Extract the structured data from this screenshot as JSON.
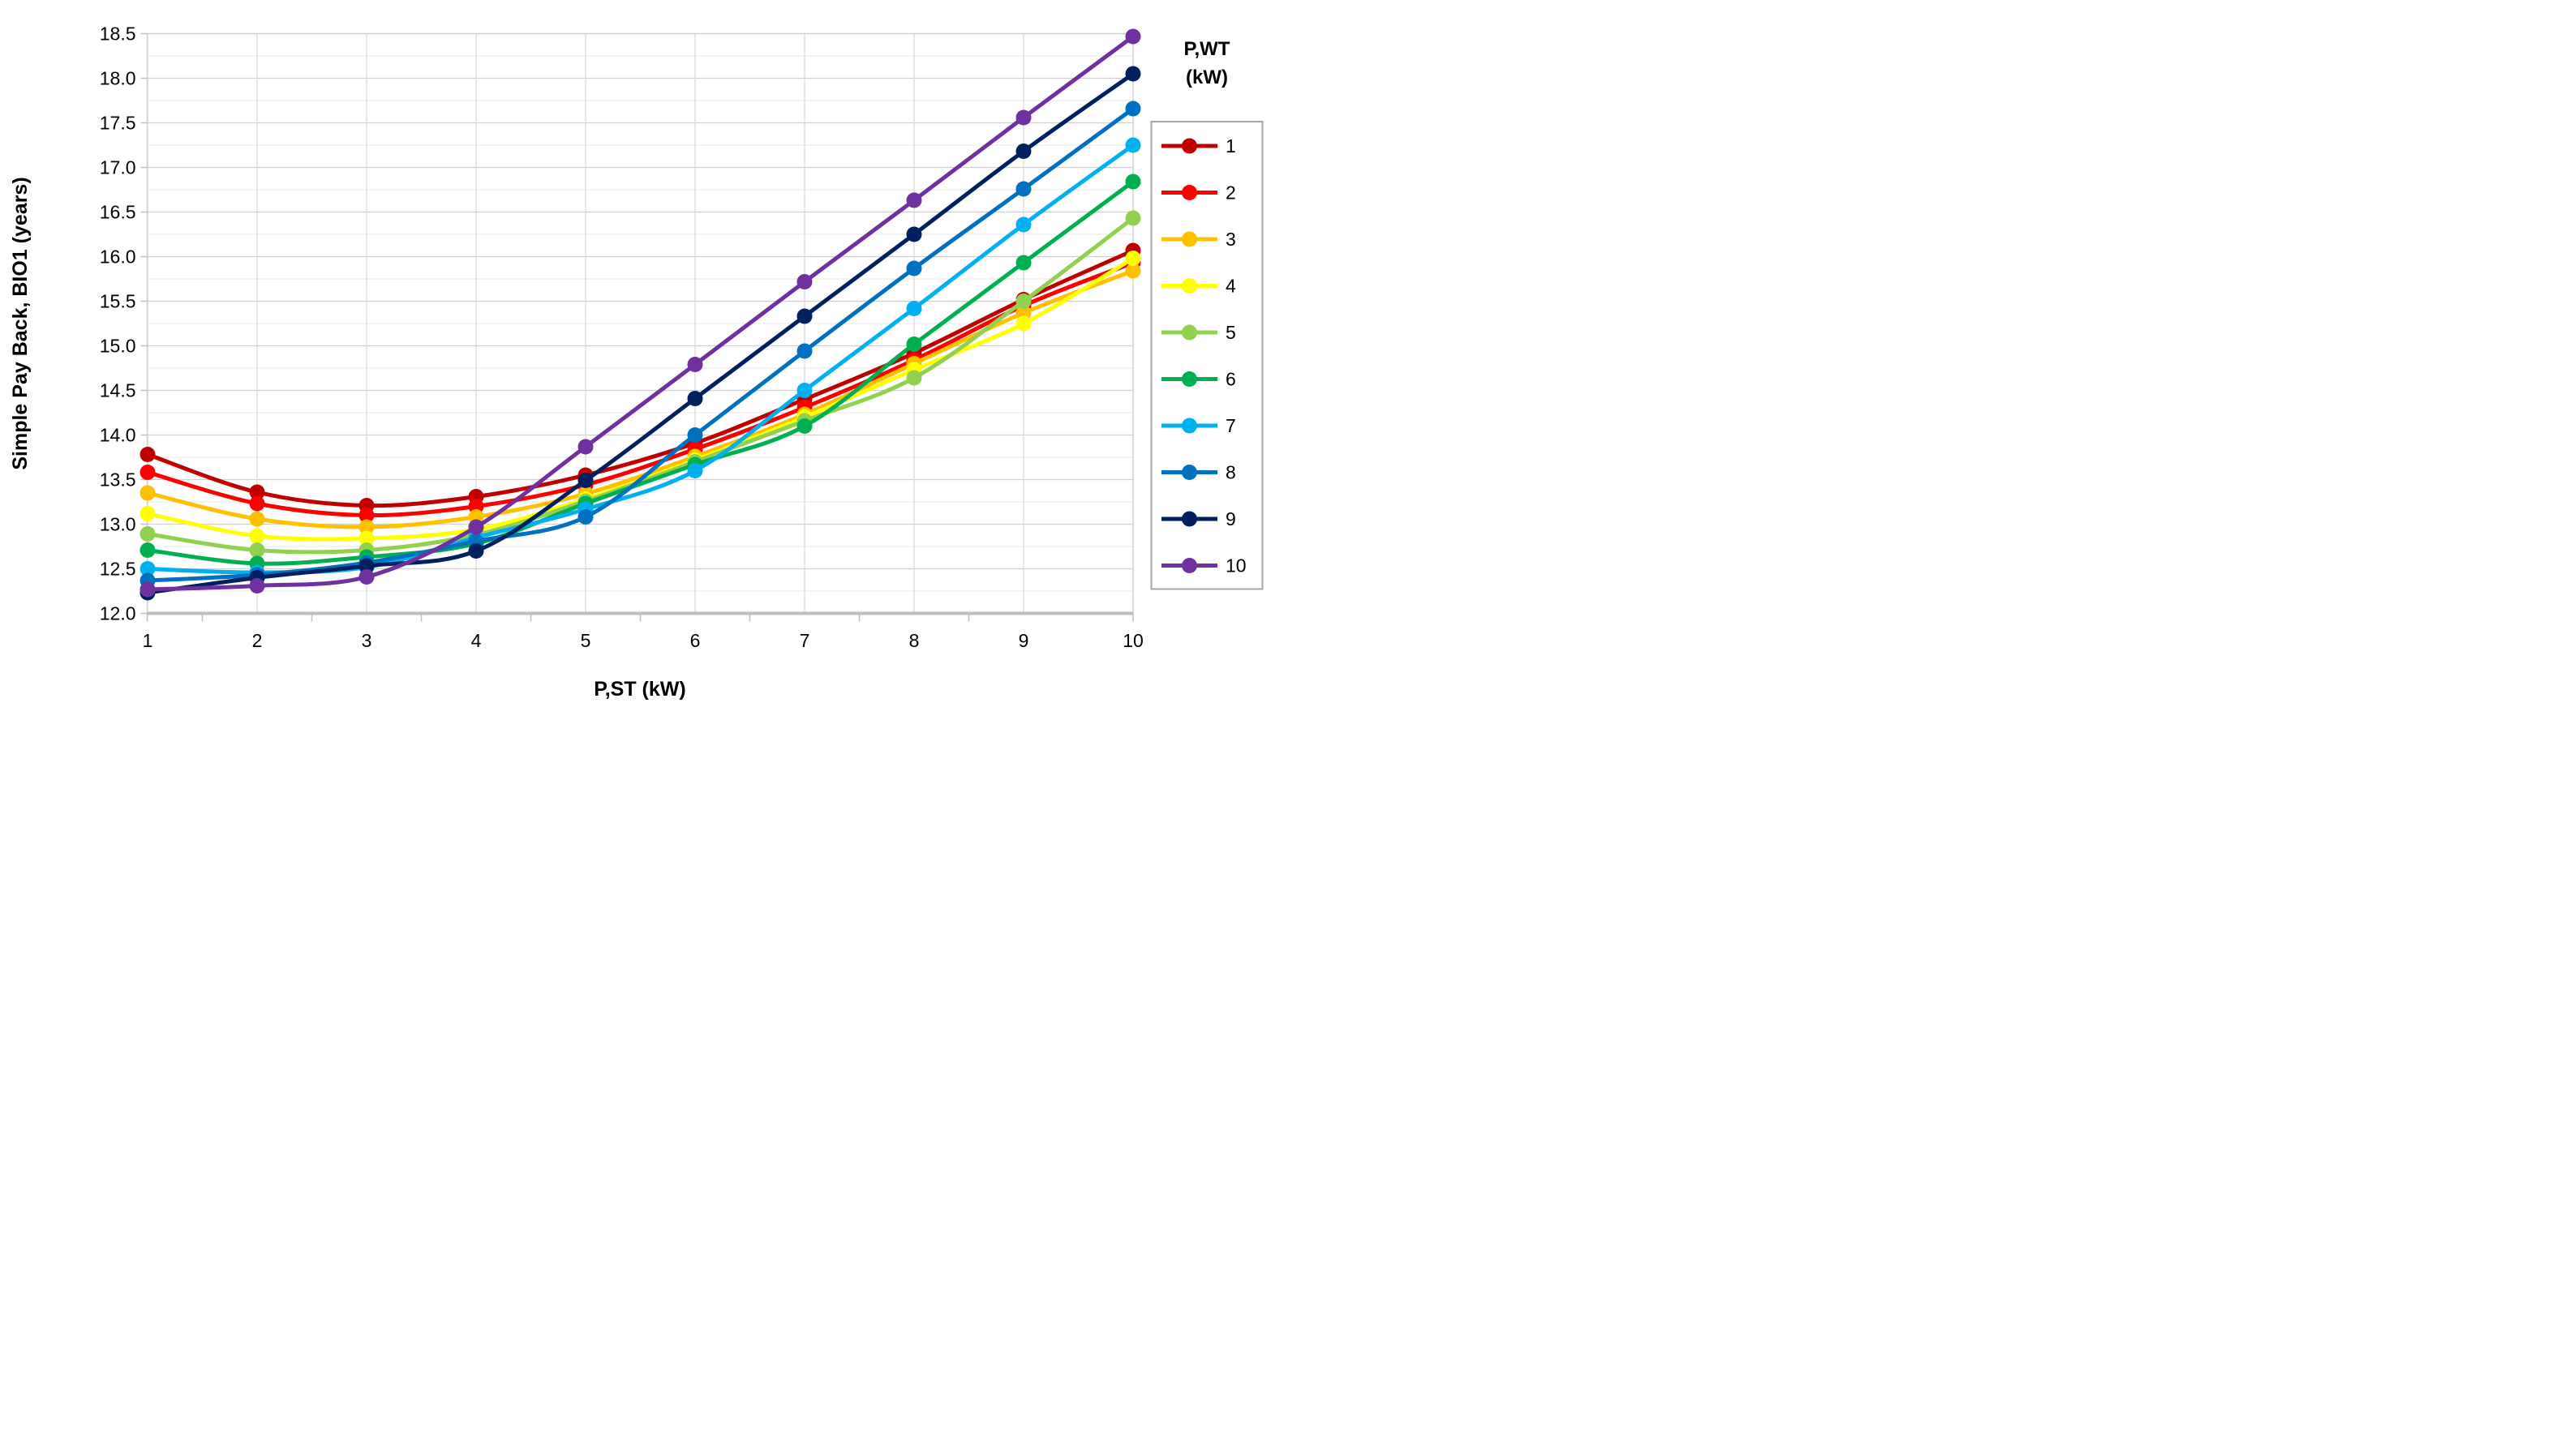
{
  "chart_data": {
    "type": "line",
    "title": "",
    "xlabel": "P,ST (kW)",
    "ylabel": "Simple Pay Back, BIO1 (years)",
    "legend_title_line1": "P,WT",
    "legend_title_line2": "(kW)",
    "legend_position": "right",
    "grid": true,
    "x": [
      1,
      2,
      3,
      4,
      5,
      6,
      7,
      8,
      9,
      10
    ],
    "x_tick_labels": [
      "1",
      "2",
      "3",
      "4",
      "5",
      "6",
      "7",
      "8",
      "9",
      "10"
    ],
    "y_tick_labels": [
      "12.0",
      "12.5",
      "13.0",
      "13.5",
      "14.0",
      "14.5",
      "15.0",
      "15.5",
      "16.0",
      "16.5",
      "17.0",
      "17.5",
      "18.0",
      "18.5"
    ],
    "ylim": [
      12.0,
      18.5
    ],
    "y_major_step": 0.5,
    "y_minor_step": 0.25,
    "series": [
      {
        "name": "1",
        "color": "#C00000",
        "values": [
          13.78,
          13.36,
          13.21,
          13.31,
          13.55,
          13.91,
          14.4,
          14.92,
          15.52,
          16.07
        ]
      },
      {
        "name": "2",
        "color": "#FF0000",
        "values": [
          13.58,
          13.23,
          13.1,
          13.2,
          13.44,
          13.84,
          14.31,
          14.84,
          15.45,
          15.93
        ]
      },
      {
        "name": "3",
        "color": "#FFC000",
        "values": [
          13.35,
          13.06,
          12.97,
          13.08,
          13.34,
          13.76,
          14.23,
          14.8,
          15.37,
          15.84
        ]
      },
      {
        "name": "4",
        "color": "#FFFF00",
        "values": [
          13.12,
          12.87,
          12.84,
          12.94,
          13.28,
          13.72,
          14.2,
          14.73,
          15.25,
          15.98
        ]
      },
      {
        "name": "5",
        "color": "#92D050",
        "values": [
          12.89,
          12.71,
          12.71,
          12.88,
          13.26,
          13.7,
          14.16,
          14.64,
          15.5,
          16.43
        ]
      },
      {
        "name": "6",
        "color": "#00B050",
        "values": [
          12.71,
          12.56,
          12.63,
          12.78,
          13.23,
          13.67,
          14.1,
          15.02,
          15.93,
          16.84
        ]
      },
      {
        "name": "7",
        "color": "#00B0F0",
        "values": [
          12.5,
          12.46,
          12.52,
          12.85,
          13.17,
          13.6,
          14.5,
          15.42,
          16.36,
          17.25
        ]
      },
      {
        "name": "8",
        "color": "#0070C0",
        "values": [
          12.37,
          12.43,
          12.57,
          12.81,
          13.08,
          14.0,
          14.94,
          15.87,
          16.76,
          17.66
        ]
      },
      {
        "name": "9",
        "color": "#002060",
        "values": [
          12.23,
          12.4,
          12.53,
          12.7,
          13.49,
          14.41,
          15.33,
          16.25,
          17.18,
          18.05
        ]
      },
      {
        "name": "10",
        "color": "#7030A0",
        "values": [
          12.27,
          12.31,
          12.41,
          12.97,
          13.87,
          14.79,
          15.72,
          16.63,
          17.56,
          18.47
        ]
      }
    ],
    "style": {
      "major_grid_color": "#D0D0D0",
      "minor_grid_color": "#ECECEC",
      "vertical_grid_color": "#D9D9D9",
      "axis_line_color": "#BFBFBF",
      "legend_border_color": "#A6A6A6",
      "background": "#FFFFFF"
    }
  }
}
